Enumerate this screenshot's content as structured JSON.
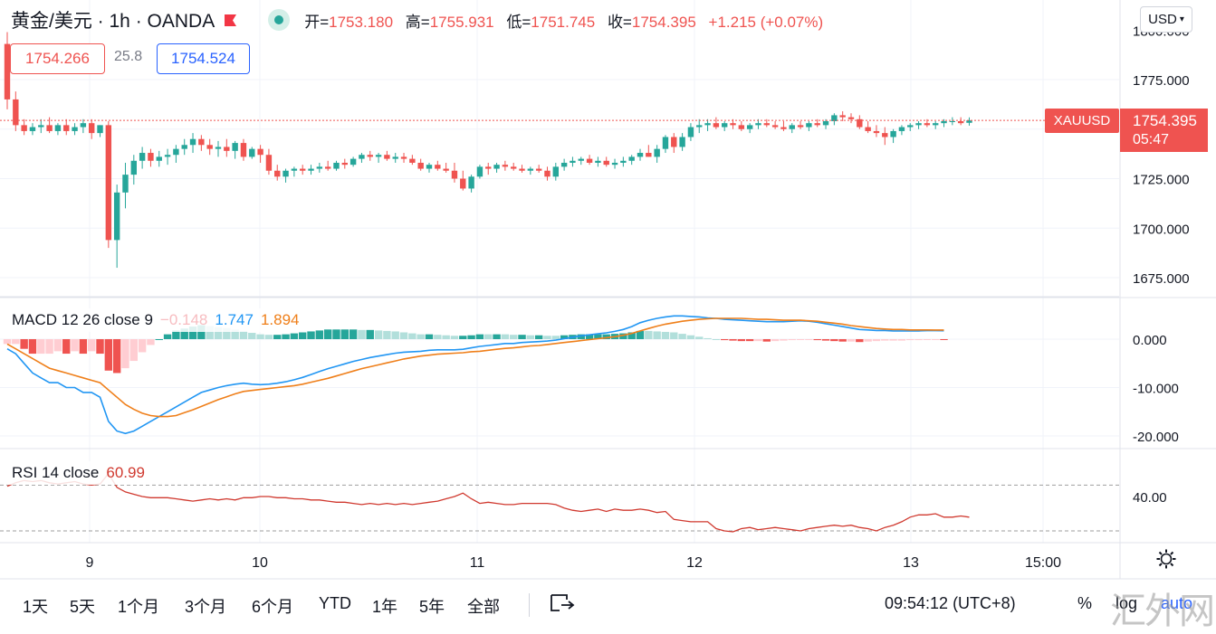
{
  "header": {
    "symbol": "黄金/美元 · 1h · OANDA",
    "ohlc": [
      {
        "k": "开=",
        "v": "1753.180"
      },
      {
        "k": "高=",
        "v": "1755.931"
      },
      {
        "k": "低=",
        "v": "1751.745"
      },
      {
        "k": "收=",
        "v": "1754.395"
      },
      {
        "k": "",
        "v": "+1.215 (+0.07%)"
      }
    ],
    "bid": "1754.266",
    "spread": "25.8",
    "ask": "1754.524",
    "currency": "USD",
    "colors": {
      "up": "#26a69a",
      "down": "#ef5350",
      "ask": "#2962ff"
    }
  },
  "price_label": {
    "symbol": "XAUUSD",
    "price": "1754.395",
    "countdown": "05:47"
  },
  "macd_legend": {
    "name": "MACD 12 26 close 9",
    "hist": "−0.148",
    "macd": "1.747",
    "signal": "1.894"
  },
  "rsi_legend": {
    "name": "RSI 14 close",
    "value": "60.99"
  },
  "bottom": {
    "ranges": [
      "1天",
      "5天",
      "1个月",
      "3个月",
      "6个月",
      "YTD",
      "1年",
      "5年",
      "全部"
    ],
    "compare_icon": "compare-icon",
    "clock": "09:54:12 (UTC+8)",
    "percent": "%",
    "log": "log",
    "auto": "auto"
  },
  "watermark": "汇外网",
  "chart_data": [
    {
      "type": "candlestick",
      "title": "黄金/美元 1h OANDA",
      "xlabel": "",
      "ylabel": "",
      "x_ticks": [
        "9",
        "10",
        "11",
        "12",
        "13",
        "15:00"
      ],
      "y_ticks": [
        "1675.000",
        "1700.000",
        "1725.000",
        "1750.000",
        "1775.000"
      ],
      "ylim": [
        1666,
        1800
      ],
      "last_price": 1754.395,
      "candles": [
        [
          1793,
          1799,
          1760,
          1765
        ],
        [
          1765,
          1769,
          1749,
          1752
        ],
        [
          1752,
          1755,
          1747,
          1749
        ],
        [
          1749,
          1753,
          1747,
          1751
        ],
        [
          1751,
          1755,
          1748,
          1752
        ],
        [
          1752,
          1756,
          1748,
          1749
        ],
        [
          1749,
          1753,
          1747,
          1752
        ],
        [
          1752,
          1755,
          1747,
          1749
        ],
        [
          1749,
          1753,
          1747,
          1751
        ],
        [
          1751,
          1755,
          1748,
          1753
        ],
        [
          1753,
          1755,
          1745,
          1748
        ],
        [
          1748,
          1752,
          1746,
          1752
        ],
        [
          1752,
          1754,
          1690,
          1694
        ],
        [
          1694,
          1722,
          1680,
          1718
        ],
        [
          1718,
          1733,
          1710,
          1727
        ],
        [
          1727,
          1737,
          1722,
          1734
        ],
        [
          1734,
          1741,
          1730,
          1738
        ],
        [
          1738,
          1740,
          1731,
          1734
        ],
        [
          1734,
          1739,
          1731,
          1736
        ],
        [
          1736,
          1740,
          1732,
          1737
        ],
        [
          1737,
          1742,
          1733,
          1740
        ],
        [
          1740,
          1745,
          1737,
          1742
        ],
        [
          1742,
          1748,
          1738,
          1745
        ],
        [
          1745,
          1747,
          1739,
          1742
        ],
        [
          1742,
          1745,
          1737,
          1740
        ],
        [
          1740,
          1744,
          1736,
          1741
        ],
        [
          1741,
          1745,
          1736,
          1739
        ],
        [
          1739,
          1744,
          1735,
          1743
        ],
        [
          1743,
          1745,
          1734,
          1736
        ],
        [
          1736,
          1741,
          1735,
          1740
        ],
        [
          1740,
          1742,
          1733,
          1737
        ],
        [
          1737,
          1740,
          1727,
          1729
        ],
        [
          1729,
          1732,
          1724,
          1726
        ],
        [
          1726,
          1730,
          1723,
          1729
        ],
        [
          1729,
          1731,
          1726,
          1730
        ],
        [
          1730,
          1732,
          1727,
          1729
        ],
        [
          1729,
          1732,
          1727,
          1730
        ],
        [
          1730,
          1733,
          1728,
          1731
        ],
        [
          1731,
          1734,
          1729,
          1730
        ],
        [
          1730,
          1734,
          1729,
          1733
        ],
        [
          1733,
          1735,
          1730,
          1732
        ],
        [
          1732,
          1736,
          1731,
          1735
        ],
        [
          1735,
          1738,
          1733,
          1737
        ],
        [
          1737,
          1739,
          1734,
          1736
        ],
        [
          1736,
          1738,
          1733,
          1737
        ],
        [
          1737,
          1739,
          1734,
          1735
        ],
        [
          1735,
          1738,
          1733,
          1736
        ],
        [
          1736,
          1738,
          1733,
          1735
        ],
        [
          1735,
          1737,
          1732,
          1733
        ],
        [
          1733,
          1735,
          1729,
          1730
        ],
        [
          1730,
          1733,
          1728,
          1732
        ],
        [
          1732,
          1734,
          1729,
          1730
        ],
        [
          1730,
          1733,
          1728,
          1729
        ],
        [
          1729,
          1733,
          1723,
          1725
        ],
        [
          1725,
          1729,
          1719,
          1720
        ],
        [
          1720,
          1727,
          1718,
          1726
        ],
        [
          1726,
          1732,
          1725,
          1731
        ],
        [
          1731,
          1733,
          1727,
          1730
        ],
        [
          1730,
          1733,
          1728,
          1732
        ],
        [
          1732,
          1734,
          1729,
          1731
        ],
        [
          1731,
          1733,
          1729,
          1730
        ],
        [
          1730,
          1732,
          1728,
          1729
        ],
        [
          1729,
          1731,
          1727,
          1730
        ],
        [
          1730,
          1732,
          1728,
          1729
        ],
        [
          1729,
          1731,
          1724,
          1726
        ],
        [
          1726,
          1733,
          1724,
          1731
        ],
        [
          1731,
          1735,
          1729,
          1733
        ],
        [
          1733,
          1736,
          1731,
          1734
        ],
        [
          1734,
          1736,
          1732,
          1735
        ],
        [
          1735,
          1737,
          1732,
          1733
        ],
        [
          1733,
          1736,
          1731,
          1734
        ],
        [
          1734,
          1736,
          1731,
          1732
        ],
        [
          1732,
          1735,
          1730,
          1733
        ],
        [
          1733,
          1736,
          1731,
          1734
        ],
        [
          1734,
          1737,
          1732,
          1736
        ],
        [
          1736,
          1740,
          1734,
          1738
        ],
        [
          1738,
          1742,
          1736,
          1736
        ],
        [
          1736,
          1742,
          1733,
          1740
        ],
        [
          1740,
          1747,
          1738,
          1746
        ],
        [
          1746,
          1748,
          1738,
          1741
        ],
        [
          1741,
          1748,
          1739,
          1746
        ],
        [
          1746,
          1753,
          1744,
          1751
        ],
        [
          1751,
          1755,
          1748,
          1752
        ],
        [
          1752,
          1755,
          1749,
          1753
        ],
        [
          1753,
          1756,
          1750,
          1751
        ],
        [
          1751,
          1754,
          1749,
          1753
        ],
        [
          1753,
          1755,
          1750,
          1752
        ],
        [
          1752,
          1754,
          1749,
          1750
        ],
        [
          1750,
          1753,
          1748,
          1752
        ],
        [
          1752,
          1755,
          1750,
          1753
        ],
        [
          1753,
          1755,
          1751,
          1752
        ],
        [
          1752,
          1754,
          1750,
          1751
        ],
        [
          1751,
          1754,
          1749,
          1750
        ],
        [
          1750,
          1753,
          1748,
          1752
        ],
        [
          1752,
          1754,
          1750,
          1751
        ],
        [
          1751,
          1754,
          1749,
          1753
        ],
        [
          1753,
          1755,
          1751,
          1752
        ],
        [
          1752,
          1755,
          1750,
          1754
        ],
        [
          1754,
          1758,
          1752,
          1757
        ],
        [
          1757,
          1759,
          1754,
          1756
        ],
        [
          1756,
          1758,
          1753,
          1755
        ],
        [
          1755,
          1757,
          1750,
          1751
        ],
        [
          1751,
          1754,
          1748,
          1749
        ],
        [
          1749,
          1752,
          1746,
          1748
        ],
        [
          1748,
          1751,
          1742,
          1746
        ],
        [
          1746,
          1750,
          1743,
          1749
        ],
        [
          1749,
          1752,
          1747,
          1751
        ],
        [
          1751,
          1753,
          1749,
          1752
        ],
        [
          1752,
          1754,
          1750,
          1753
        ],
        [
          1753,
          1755,
          1751,
          1752
        ],
        [
          1752,
          1754,
          1750,
          1753
        ],
        [
          1753,
          1755,
          1751,
          1754
        ],
        [
          1754,
          1756,
          1752,
          1754
        ],
        [
          1754,
          1756,
          1752,
          1753
        ],
        [
          1753.18,
          1755.931,
          1751.745,
          1754.395
        ]
      ]
    },
    {
      "type": "line",
      "title": "MACD 12 26 close 9",
      "y_ticks": [
        "-20.000",
        "-10.000",
        "0.000"
      ],
      "ylim": [
        -22,
        6
      ],
      "macd": [
        -2,
        -3,
        -5,
        -7,
        -8,
        -9,
        -9,
        -10,
        -10,
        -11,
        -11,
        -12,
        -17,
        -19,
        -19.5,
        -19,
        -18,
        -17,
        -16,
        -15,
        -14,
        -13,
        -12,
        -11,
        -10.5,
        -10,
        -9.6,
        -9.3,
        -9.1,
        -9.3,
        -9.4,
        -9.3,
        -9.1,
        -8.8,
        -8.4,
        -7.9,
        -7.3,
        -6.7,
        -6.1,
        -5.6,
        -5.1,
        -4.6,
        -4.2,
        -3.8,
        -3.5,
        -3.2,
        -2.9,
        -2.7,
        -2.6,
        -2.5,
        -2.3,
        -2.2,
        -2.2,
        -2.2,
        -2.1,
        -1.8,
        -1.5,
        -1.3,
        -1.1,
        -0.9,
        -0.9,
        -0.7,
        -0.6,
        -0.5,
        -0.4,
        -0.2,
        0.1,
        0.4,
        0.7,
        0.9,
        1.1,
        1.3,
        1.6,
        2,
        2.6,
        3.4,
        3.9,
        4.3,
        4.6,
        4.8,
        4.8,
        4.7,
        4.6,
        4.4,
        4.3,
        4.1,
        4,
        3.9,
        3.8,
        3.7,
        3.6,
        3.6,
        3.6,
        3.7,
        3.8,
        3.7,
        3.5,
        3.2,
        2.9,
        2.6,
        2.3,
        2,
        1.9,
        1.8,
        1.8,
        1.7,
        1.7,
        1.7,
        1.7,
        1.75,
        1.75,
        1.747
      ],
      "signal": [
        -1,
        -2,
        -3,
        -4,
        -5,
        -6,
        -6.5,
        -7,
        -7.5,
        -8,
        -8.5,
        -9,
        -10.5,
        -12,
        -13.5,
        -14.5,
        -15.3,
        -15.8,
        -16,
        -16,
        -15.8,
        -15.2,
        -14.6,
        -13.9,
        -13.2,
        -12.5,
        -11.9,
        -11.3,
        -10.8,
        -10.6,
        -10.4,
        -10.2,
        -10,
        -9.8,
        -9.6,
        -9.3,
        -8.9,
        -8.5,
        -8.1,
        -7.6,
        -7.1,
        -6.6,
        -6.1,
        -5.7,
        -5.3,
        -4.9,
        -4.5,
        -4.1,
        -3.8,
        -3.5,
        -3.3,
        -3.1,
        -3,
        -2.9,
        -2.8,
        -2.6,
        -2.5,
        -2.3,
        -2.1,
        -1.9,
        -1.8,
        -1.6,
        -1.4,
        -1.3,
        -1.1,
        -0.9,
        -0.7,
        -0.5,
        -0.3,
        -0.1,
        0.1,
        0.3,
        0.5,
        0.8,
        1.2,
        1.7,
        2.2,
        2.7,
        3.1,
        3.4,
        3.7,
        3.9,
        4.1,
        4.2,
        4.3,
        4.3,
        4.3,
        4.3,
        4.2,
        4.1,
        4.1,
        4,
        3.9,
        3.9,
        3.9,
        3.8,
        3.7,
        3.5,
        3.3,
        3.1,
        2.8,
        2.6,
        2.4,
        2.2,
        2.1,
        2,
        2,
        1.9,
        1.9,
        1.9,
        1.894,
        1.894
      ]
    },
    {
      "type": "line",
      "title": "RSI 14 close",
      "y_ticks": [
        "40.00"
      ],
      "band": [
        30,
        70
      ],
      "rsi": [
        31,
        28,
        26,
        27,
        26,
        28,
        29,
        28,
        27,
        29,
        30,
        29,
        20,
        32,
        36,
        38,
        40,
        41,
        41,
        41,
        42,
        43,
        44,
        43,
        42,
        43,
        42,
        43,
        41,
        41,
        40,
        40,
        41,
        41,
        42,
        42,
        43,
        43,
        44,
        45,
        45,
        46,
        47,
        46,
        47,
        46,
        47,
        46,
        47,
        46,
        45,
        44,
        42,
        40,
        37,
        42,
        46,
        45,
        46,
        47,
        47,
        46,
        46,
        46,
        46,
        47,
        50,
        52,
        53,
        52,
        51,
        53,
        51,
        52,
        52,
        51,
        52,
        54,
        53,
        60,
        61,
        62,
        62,
        62,
        68,
        70,
        71,
        68,
        67,
        69,
        68,
        67,
        68,
        69,
        70,
        68,
        67,
        66,
        65,
        66,
        65,
        67,
        68,
        70,
        67,
        65,
        62,
        58,
        56,
        56,
        55,
        58,
        58,
        57,
        58,
        59,
        58,
        61,
        61,
        59,
        60,
        60,
        59,
        61
      ]
    }
  ]
}
